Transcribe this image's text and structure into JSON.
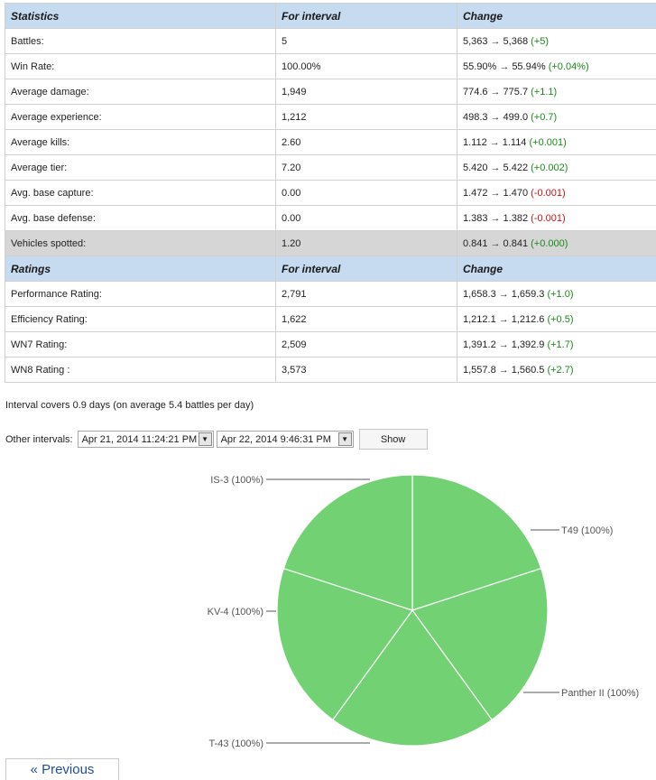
{
  "stats": {
    "header": {
      "col1": "Statistics",
      "col2": "For interval",
      "col3": "Change"
    },
    "rows": [
      {
        "label": "Battles:",
        "interval": "5",
        "from": "5,363",
        "to": "5,368",
        "delta": "(+5)",
        "sign": "pos"
      },
      {
        "label": "Win Rate:",
        "interval": "100.00%",
        "from": "55.90%",
        "to": "55.94%",
        "delta": "(+0.04%)",
        "sign": "pos"
      },
      {
        "label": "Average damage:",
        "interval": "1,949",
        "from": "774.6",
        "to": "775.7",
        "delta": "(+1.1)",
        "sign": "pos"
      },
      {
        "label": "Average experience:",
        "interval": "1,212",
        "from": "498.3",
        "to": "499.0",
        "delta": "(+0.7)",
        "sign": "pos"
      },
      {
        "label": "Average kills:",
        "interval": "2.60",
        "from": "1.112",
        "to": "1.114",
        "delta": "(+0.001)",
        "sign": "pos"
      },
      {
        "label": "Average tier:",
        "interval": "7.20",
        "from": "5.420",
        "to": "5.422",
        "delta": "(+0.002)",
        "sign": "pos"
      },
      {
        "label": "Avg. base capture:",
        "interval": "0.00",
        "from": "1.472",
        "to": "1.470",
        "delta": "(-0.001)",
        "sign": "neg"
      },
      {
        "label": "Avg. base defense:",
        "interval": "0.00",
        "from": "1.383",
        "to": "1.382",
        "delta": "(-0.001)",
        "sign": "neg"
      },
      {
        "label": "Vehicles spotted:",
        "interval": "1.20",
        "from": "0.841",
        "to": "0.841",
        "delta": "(+0.000)",
        "sign": "pos"
      }
    ]
  },
  "ratings": {
    "header": {
      "col1": "Ratings",
      "col2": "For interval",
      "col3": "Change"
    },
    "rows": [
      {
        "label": "Performance Rating:",
        "interval": "2,791",
        "from": "1,658.3",
        "to": "1,659.3",
        "delta": "(+1.0)",
        "sign": "pos"
      },
      {
        "label": "Efficiency Rating:",
        "interval": "1,622",
        "from": "1,212.1",
        "to": "1,212.6",
        "delta": "(+0.5)",
        "sign": "pos"
      },
      {
        "label": "WN7 Rating:",
        "interval": "2,509",
        "from": "1,391.2",
        "to": "1,392.9",
        "delta": "(+1.7)",
        "sign": "pos"
      },
      {
        "label": "WN8 Rating :",
        "interval": "3,573",
        "from": "1,557.8",
        "to": "1,560.5",
        "delta": "(+2.7)",
        "sign": "pos"
      }
    ]
  },
  "arrow_glyph": "→",
  "colors": {
    "positive": "#1a8a1a",
    "negative": "#cc1111",
    "header_bg": "#c6daf0",
    "slice": "#72d173"
  },
  "interval_note": "Interval covers 0.9 days (on average 5.4 battles per day)",
  "other_intervals": {
    "label": "Other intervals:",
    "from_value": "Apr 21, 2014 11:24:21 PM",
    "to_value": "Apr 22, 2014 9:46:31 PM",
    "show_label": "Show"
  },
  "chart_data": {
    "type": "pie",
    "categories": [
      "IS-3",
      "T49",
      "Panther II",
      "T-43",
      "KV-4"
    ],
    "values": [
      1,
      1,
      1,
      1,
      1
    ],
    "labels": [
      "IS-3 (100%)",
      "T49 (100%)",
      "Panther II (100%)",
      "T-43 (100%)",
      "KV-4 (100%)"
    ]
  },
  "prev_label": "« Previous"
}
